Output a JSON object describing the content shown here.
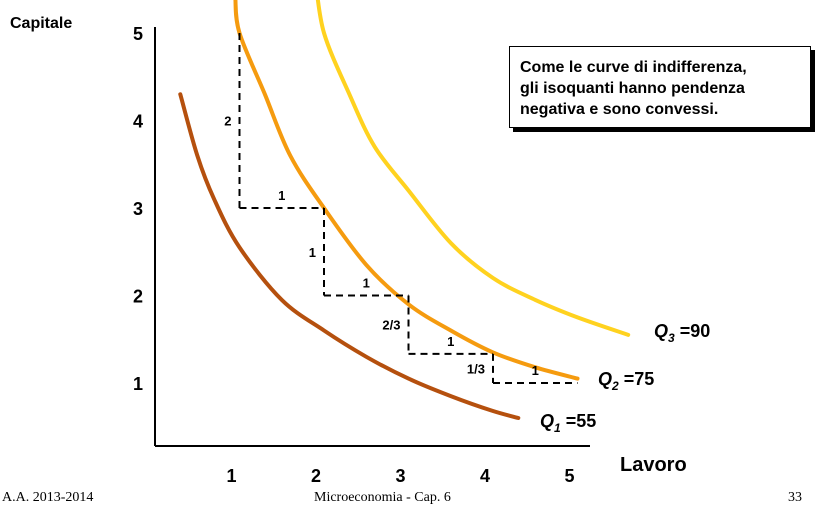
{
  "chart_data": {
    "type": "line",
    "ylabel": "Capitale",
    "xlabel": "Lavoro",
    "xlim": [
      0,
      5.3
    ],
    "ylim": [
      0,
      5
    ],
    "x_ticks": [
      "1",
      "2",
      "3",
      "4",
      "5"
    ],
    "y_ticks": [
      "1",
      "2",
      "3",
      "4",
      "5"
    ],
    "series": [
      {
        "name": "Q",
        "sub": "1",
        "value_label": "=55",
        "color": "#b5500e",
        "x": [
          0.3,
          0.5,
          0.7,
          1.0,
          1.5,
          2.0,
          2.5,
          3.0,
          3.5,
          4.0,
          4.3
        ],
        "y": [
          4.3,
          3.6,
          3.1,
          2.55,
          1.95,
          1.6,
          1.3,
          1.05,
          0.85,
          0.68,
          0.6
        ]
      },
      {
        "name": "Q",
        "sub": "2",
        "value_label": "=75",
        "color": "#f59b0f",
        "x": [
          0.95,
          1.0,
          1.3,
          1.6,
          2.0,
          2.5,
          3.0,
          3.5,
          4.0,
          4.5,
          5.0
        ],
        "y": [
          5.4,
          5.0,
          4.3,
          3.6,
          3.0,
          2.35,
          1.9,
          1.6,
          1.35,
          1.18,
          1.05
        ]
      },
      {
        "name": "Q",
        "sub": "3",
        "value_label": "=90",
        "color": "#ffd21f",
        "x": [
          1.9,
          2.0,
          2.3,
          2.6,
          3.0,
          3.5,
          4.0,
          4.5,
          5.0,
          5.6
        ],
        "y": [
          5.6,
          5.0,
          4.3,
          3.7,
          3.2,
          2.6,
          2.2,
          1.95,
          1.75,
          1.55
        ]
      }
    ],
    "steps": [
      {
        "label": "2",
        "dir": "v",
        "x": 1,
        "y0": 5.0,
        "y1": 3.0
      },
      {
        "label": "1",
        "dir": "h",
        "x0": 1,
        "x1": 2,
        "y": 3.0
      },
      {
        "label": "1",
        "dir": "v",
        "x": 2,
        "y0": 3.0,
        "y1": 2.0
      },
      {
        "label": "1",
        "dir": "h",
        "x0": 2,
        "x1": 3,
        "y": 2.0
      },
      {
        "label": "2/3",
        "dir": "v",
        "x": 3,
        "y0": 2.0,
        "y1": 1.333
      },
      {
        "label": "1",
        "dir": "h",
        "x0": 3,
        "x1": 4,
        "y": 1.333
      },
      {
        "label": "1/3",
        "dir": "v",
        "x": 4,
        "y0": 1.333,
        "y1": 1.0
      },
      {
        "label": "1",
        "dir": "h",
        "x0": 4,
        "x1": 5,
        "y": 1.0
      }
    ],
    "grid": false,
    "legend": "none"
  },
  "annotation": {
    "line1": "Come le curve di indifferenza,",
    "line2": "gli isoquanti hanno pendenza",
    "line3": "negativa e sono convessi."
  },
  "footer": {
    "left": "A.A. 2013-2014",
    "center": "Microeconomia - Cap. 6",
    "right": "33"
  }
}
